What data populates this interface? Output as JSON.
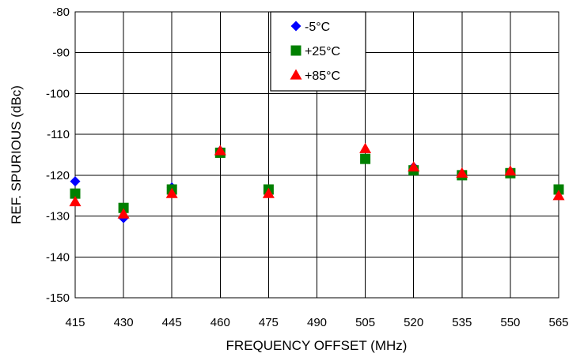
{
  "chart_data": {
    "type": "scatter",
    "title": "",
    "xlabel": "FREQUENCY OFFSET (MHz)",
    "ylabel": "REF. SPURIOUS (dBc)",
    "x": [
      415,
      430,
      445,
      460,
      475,
      490,
      505,
      520,
      535,
      550,
      565
    ],
    "xlim": [
      415,
      565
    ],
    "ylim": [
      -150,
      -80
    ],
    "x_ticks": [
      "415",
      "430",
      "445",
      "460",
      "475",
      "490",
      "505",
      "520",
      "535",
      "550",
      "565"
    ],
    "y_ticks": [
      "-80",
      "-90",
      "-100",
      "-110",
      "-120",
      "-130",
      "-140",
      "-150"
    ],
    "grid": true,
    "legend_position": "top-center",
    "series": [
      {
        "name": "-5°C",
        "marker": "diamond",
        "color": "#0000ff",
        "points": [
          [
            415,
            -121.5
          ],
          [
            430,
            -130.5
          ],
          [
            445,
            -123
          ],
          [
            460,
            -114
          ],
          [
            475,
            -123.5
          ],
          [
            505,
            -116
          ],
          [
            520,
            -118
          ],
          [
            535,
            -120
          ],
          [
            550,
            -119.5
          ],
          [
            565,
            -123.5
          ]
        ]
      },
      {
        "name": "+25°C",
        "marker": "square",
        "color": "#008000",
        "points": [
          [
            415,
            -124.5
          ],
          [
            430,
            -128
          ],
          [
            445,
            -123.5
          ],
          [
            460,
            -114.5
          ],
          [
            475,
            -123.5
          ],
          [
            505,
            -116
          ],
          [
            520,
            -118.8
          ],
          [
            535,
            -120
          ],
          [
            550,
            -119.5
          ],
          [
            565,
            -123.5
          ]
        ]
      },
      {
        "name": "+85°C",
        "marker": "triangle",
        "color": "#ff0000",
        "points": [
          [
            415,
            -126.5
          ],
          [
            430,
            -129.5
          ],
          [
            445,
            -124.5
          ],
          [
            460,
            -114
          ],
          [
            475,
            -124.5
          ],
          [
            505,
            -113.5
          ],
          [
            520,
            -118
          ],
          [
            535,
            -119.5
          ],
          [
            550,
            -119
          ],
          [
            565,
            -125
          ]
        ]
      }
    ]
  }
}
